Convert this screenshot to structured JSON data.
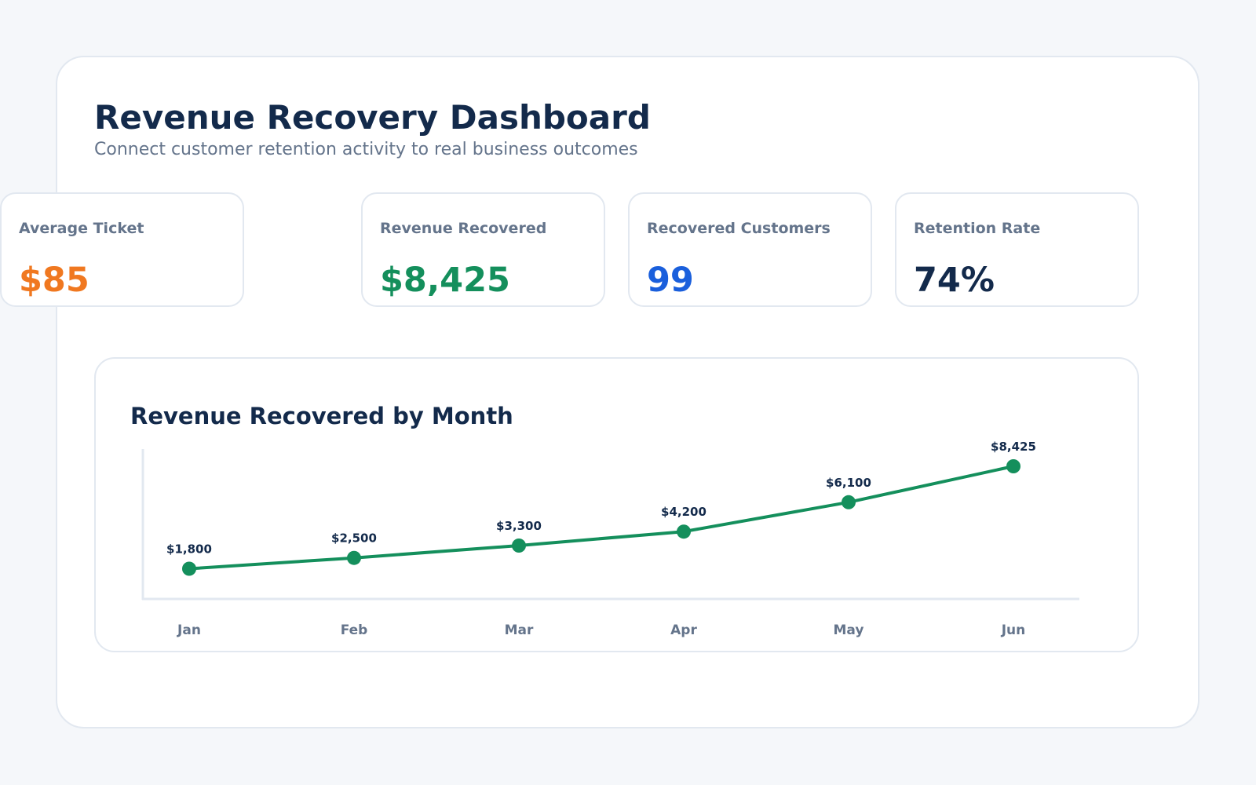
{
  "header": {
    "title": "Revenue Recovery Dashboard",
    "subtitle": "Connect customer retention activity to real business outcomes"
  },
  "kpis": [
    {
      "label": "Revenue Recovered",
      "value": "$8,425",
      "color": "#148f5c"
    },
    {
      "label": "Recovered Customers",
      "value": "99",
      "color": "#1a5fdc"
    },
    {
      "label": "Retention Rate",
      "value": "74%",
      "color": "#132a4b"
    },
    {
      "label": "Average Ticket",
      "value": "$85",
      "color": "#f07820"
    }
  ],
  "chart_data": {
    "type": "line",
    "title": "Revenue Recovered by Month",
    "categories": [
      "Jan",
      "Feb",
      "Mar",
      "Apr",
      "May",
      "Jun"
    ],
    "values": [
      1800,
      2500,
      3300,
      4200,
      6100,
      8425
    ],
    "data_labels": [
      "$1,800",
      "$2,500",
      "$3,300",
      "$4,200",
      "$6,100",
      "$8,425"
    ],
    "ylim": [
      0,
      8425
    ],
    "grid": false,
    "color": "#148f5c"
  }
}
